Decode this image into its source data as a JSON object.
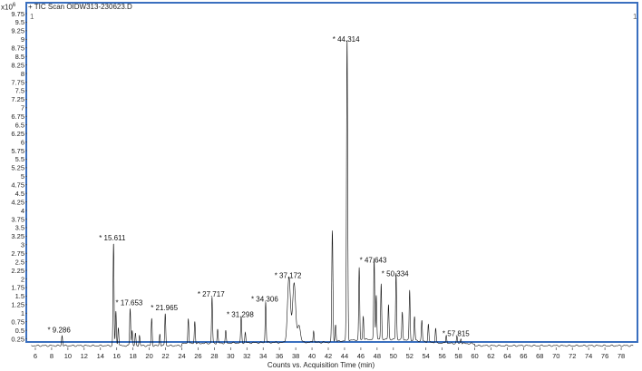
{
  "title": "+ TIC Scan OIDW313-230623.D",
  "scale_label": "x10",
  "scale_exponent": "6",
  "corner_left": "1",
  "corner_right": "1",
  "chart_data": {
    "type": "line",
    "xlabel": "Counts vs. Acquisition Time (min)",
    "ylabel": "",
    "xlim": [
      5,
      80
    ],
    "ylim": [
      0,
      9.75
    ],
    "x_ticks": [
      6,
      8,
      10,
      12,
      14,
      16,
      18,
      20,
      22,
      24,
      26,
      28,
      30,
      32,
      34,
      36,
      38,
      40,
      42,
      44,
      46,
      48,
      50,
      52,
      54,
      56,
      58,
      60,
      62,
      64,
      66,
      68,
      70,
      72,
      74,
      76,
      78
    ],
    "y_ticks": [
      0.25,
      0.5,
      0.75,
      1,
      1.25,
      1.5,
      1.75,
      2,
      2.25,
      2.5,
      2.75,
      3,
      3.25,
      3.5,
      3.75,
      4,
      4.25,
      4.5,
      4.75,
      5,
      5.25,
      5.5,
      5.75,
      6,
      6.25,
      6.5,
      6.75,
      7,
      7.25,
      7.5,
      7.75,
      8,
      8.25,
      8.5,
      8.75,
      9,
      9.25,
      9.5,
      9.75
    ],
    "labeled_peaks": [
      {
        "time": 9.286,
        "label": "* 9.286",
        "height": 0.3
      },
      {
        "time": 15.611,
        "label": "* 15.611",
        "height": 3.0
      },
      {
        "time": 17.653,
        "label": "* 17.653",
        "height": 1.1
      },
      {
        "time": 21.965,
        "label": "* 21.965",
        "height": 0.95
      },
      {
        "time": 27.717,
        "label": "* 27.717",
        "height": 1.35
      },
      {
        "time": 31.298,
        "label": "* 31.298",
        "height": 0.75
      },
      {
        "time": 34.306,
        "label": "* 34.306",
        "height": 1.2
      },
      {
        "time": 37.172,
        "label": "* 37.172",
        "height": 1.9
      },
      {
        "time": 44.314,
        "label": "* 44.314",
        "height": 8.8
      },
      {
        "time": 47.643,
        "label": "* 47.643",
        "height": 2.35
      },
      {
        "time": 50.334,
        "label": "* 50.334",
        "height": 1.95
      },
      {
        "time": 57.815,
        "label": "* 57.815",
        "height": 0.2
      }
    ],
    "other_peaks": [
      {
        "time": 15.9,
        "height": 1.0
      },
      {
        "time": 16.2,
        "height": 0.55
      },
      {
        "time": 17.9,
        "height": 0.45
      },
      {
        "time": 18.3,
        "height": 0.35
      },
      {
        "time": 18.8,
        "height": 0.3
      },
      {
        "time": 20.3,
        "height": 0.8
      },
      {
        "time": 21.3,
        "height": 0.35
      },
      {
        "time": 24.8,
        "height": 0.75
      },
      {
        "time": 25.6,
        "height": 0.65
      },
      {
        "time": 28.4,
        "height": 0.4
      },
      {
        "time": 29.4,
        "height": 0.35
      },
      {
        "time": 31.8,
        "height": 0.3
      },
      {
        "time": 37.8,
        "height": 1.75
      },
      {
        "time": 38.4,
        "height": 0.5
      },
      {
        "time": 40.2,
        "height": 0.35
      },
      {
        "time": 42.5,
        "height": 3.25
      },
      {
        "time": 42.9,
        "height": 0.5
      },
      {
        "time": 45.8,
        "height": 2.1
      },
      {
        "time": 46.3,
        "height": 0.7
      },
      {
        "time": 47.9,
        "height": 1.3
      },
      {
        "time": 48.5,
        "height": 1.6
      },
      {
        "time": 49.4,
        "height": 1.0
      },
      {
        "time": 51.1,
        "height": 0.8
      },
      {
        "time": 52.0,
        "height": 1.45
      },
      {
        "time": 52.6,
        "height": 0.7
      },
      {
        "time": 53.5,
        "height": 0.6
      },
      {
        "time": 54.3,
        "height": 0.5
      },
      {
        "time": 55.2,
        "height": 0.4
      },
      {
        "time": 56.5,
        "height": 0.25
      },
      {
        "time": 58.3,
        "height": 0.15
      }
    ]
  }
}
